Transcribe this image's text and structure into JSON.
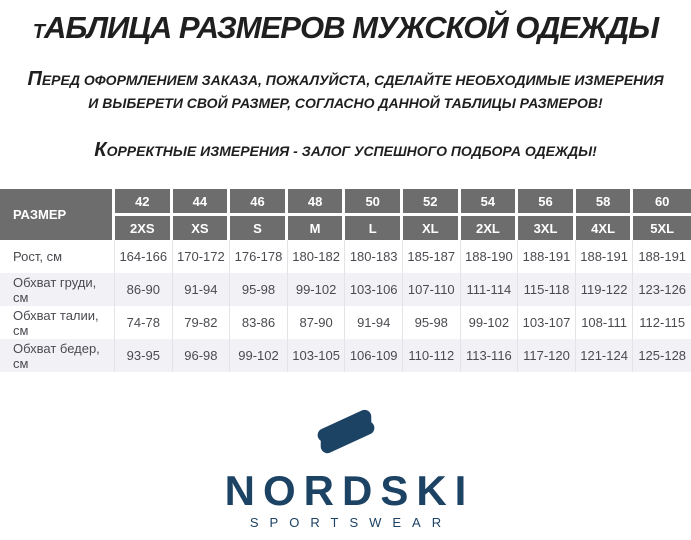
{
  "header": {
    "title": "ТАБЛИЦА РАЗМЕРОВ МУЖСКОЙ ОДЕЖДЫ",
    "intro_line1": "ПЕРЕД ОФОРМЛЕНИЕМ ЗАКАЗА, ПОЖАЛУЙСТА, СДЕЛАЙТЕ НЕОБХОДИМЫЕ ИЗМЕРЕНИЯ",
    "intro_line2": "И ВЫБЕРЕТИ СВОЙ РАЗМЕР, СОГЛАСНО ДАННОЙ ТАБЛИЦЫ РАЗМЕРОВ!",
    "note": "КОРРЕКТНЫЕ ИЗМЕРЕНИЯ - ЗАЛОГ УСПЕШНОГО ПОДБОРА ОДЕЖДЫ!"
  },
  "table": {
    "corner_label": "РАЗМЕР",
    "size_numbers": [
      "42",
      "44",
      "46",
      "48",
      "50",
      "52",
      "54",
      "56",
      "58",
      "60"
    ],
    "size_codes": [
      "2XS",
      "XS",
      "S",
      "M",
      "L",
      "XL",
      "2XL",
      "3XL",
      "4XL",
      "5XL"
    ],
    "rows": [
      {
        "label": "Рост, см",
        "values": [
          "164-166",
          "170-172",
          "176-178",
          "180-182",
          "180-183",
          "185-187",
          "188-190",
          "188-191",
          "188-191",
          "188-191"
        ]
      },
      {
        "label": "Обхват груди, см",
        "values": [
          "86-90",
          "91-94",
          "95-98",
          "99-102",
          "103-106",
          "107-110",
          "111-114",
          "115-118",
          "119-122",
          "123-126"
        ]
      },
      {
        "label": "Обхват талии, см",
        "values": [
          "74-78",
          "79-82",
          "83-86",
          "87-90",
          "91-94",
          "95-98",
          "99-102",
          "103-107",
          "108-111",
          "112-115"
        ]
      },
      {
        "label": "Обхват бедер, см",
        "values": [
          "93-95",
          "96-98",
          "99-102",
          "103-105",
          "106-109",
          "110-112",
          "113-116",
          "117-120",
          "121-124",
          "125-128"
        ]
      }
    ]
  },
  "logo": {
    "brand": "NORDSKI",
    "tagline": "SPORTSWEAR",
    "mark_icon": "nordski-n-icon"
  },
  "colors": {
    "header_bg": "#6d6d6d",
    "row_alt_bg": "#f2f2f6",
    "cell_text": "#4a4a50",
    "logo_navy": "#1c4264",
    "heading_text": "#1f1f1f"
  }
}
